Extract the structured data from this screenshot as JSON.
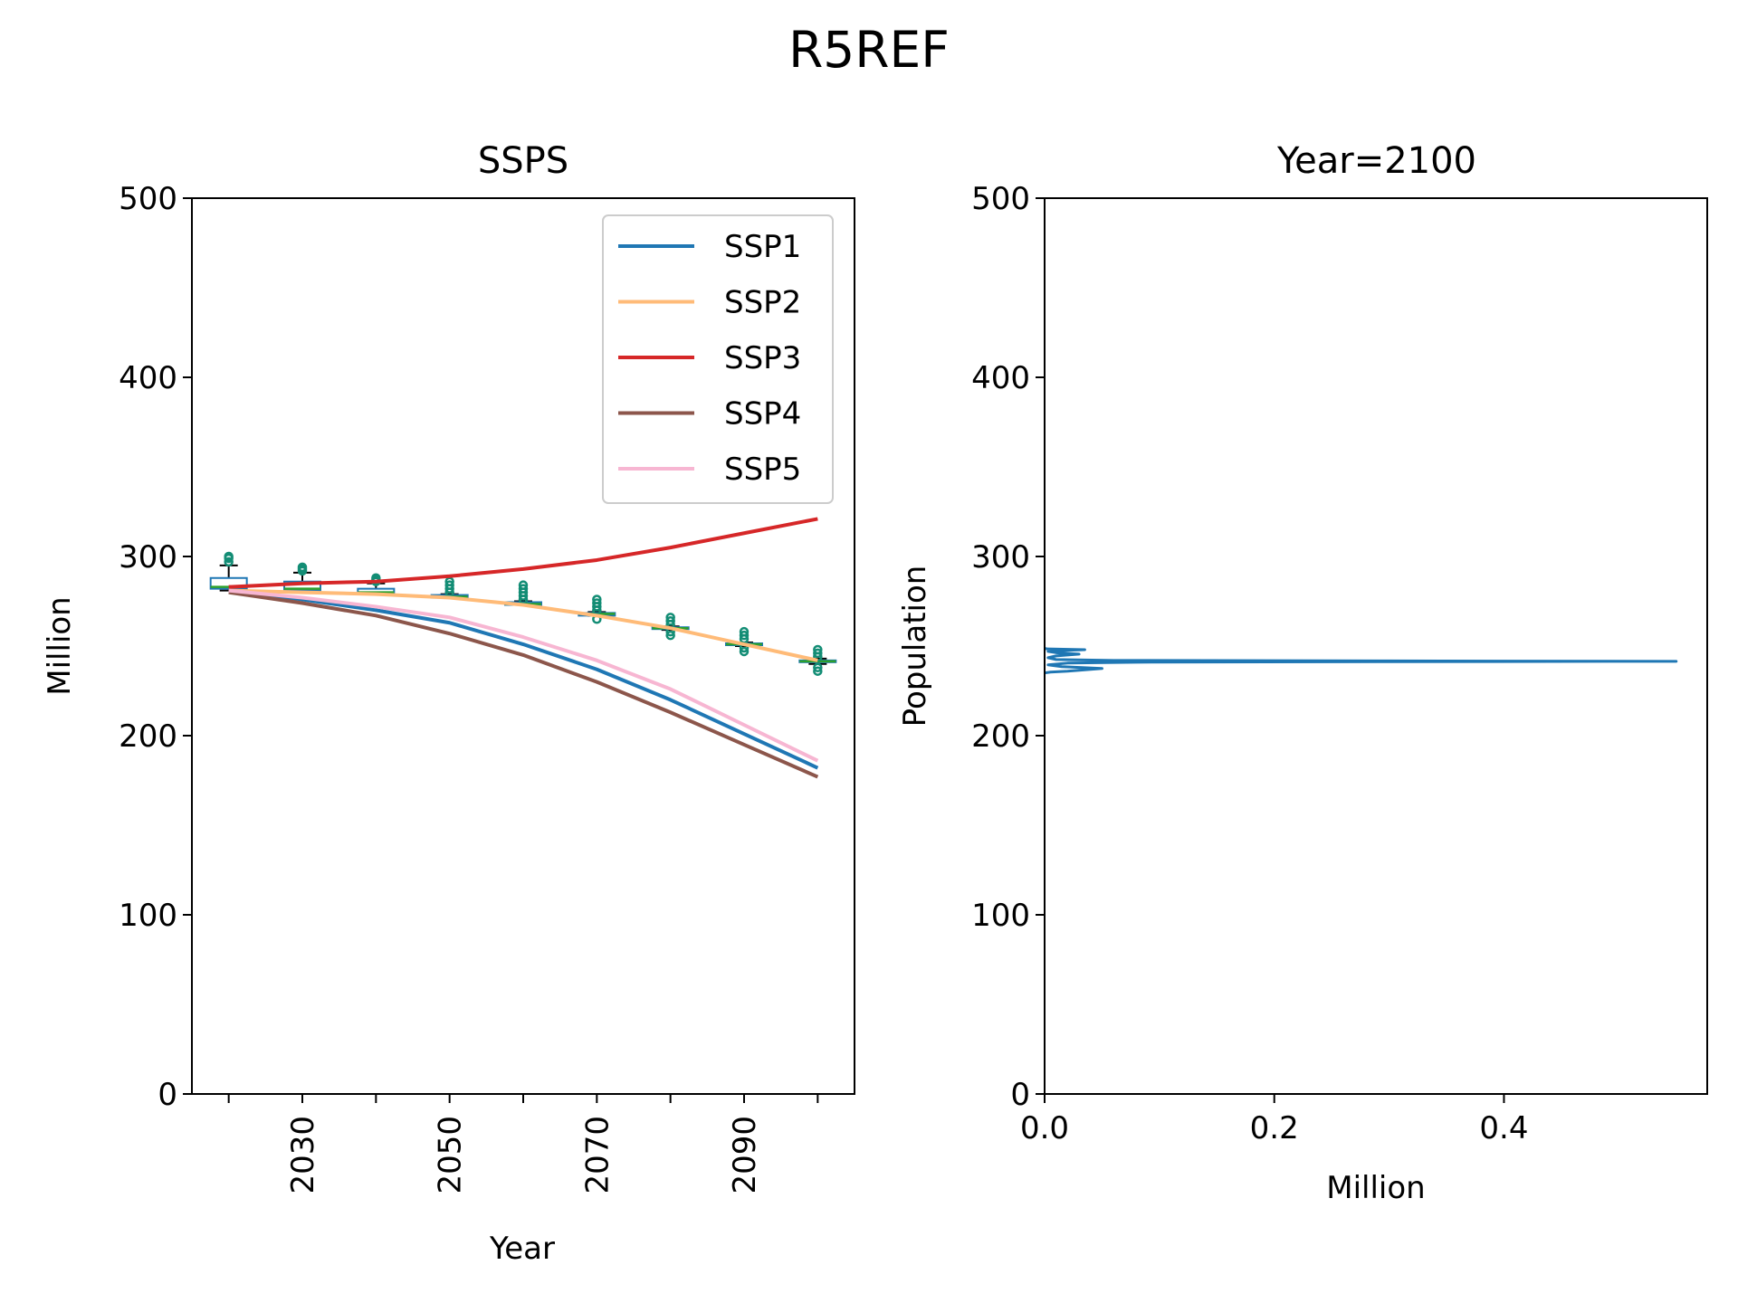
{
  "figure": {
    "suptitle": "R5REF"
  },
  "chart_data": [
    {
      "type": "line",
      "title": "SSPS",
      "xlabel": "Year",
      "ylabel": "Million",
      "ylim": [
        0,
        500
      ],
      "yticks": [
        0,
        100,
        200,
        300,
        400,
        500
      ],
      "xticks_labeled": [
        "2030",
        "2050",
        "2070",
        "2090"
      ],
      "x": [
        2020,
        2030,
        2040,
        2050,
        2060,
        2070,
        2080,
        2090,
        2100
      ],
      "grid": false,
      "legend_position": "upper right",
      "series": [
        {
          "name": "SSP1",
          "color": "#1f77b4",
          "values": [
            281,
            276,
            270,
            263,
            251,
            237,
            220,
            201,
            182
          ]
        },
        {
          "name": "SSP2",
          "color": "#ffbb78",
          "values": [
            281,
            280,
            279,
            277,
            273,
            267,
            260,
            251,
            242
          ]
        },
        {
          "name": "SSP3",
          "color": "#d62728",
          "values": [
            283,
            285,
            286,
            289,
            293,
            298,
            305,
            313,
            321
          ]
        },
        {
          "name": "SSP4",
          "color": "#8c564b",
          "values": [
            280,
            274,
            267,
            257,
            245,
            230,
            213,
            195,
            177
          ]
        },
        {
          "name": "SSP5",
          "color": "#f7b6d2",
          "values": [
            281,
            277,
            272,
            266,
            255,
            242,
            226,
            206,
            186
          ]
        }
      ],
      "boxplots": {
        "box_color": "#1f77b4",
        "median_color": "#2ca02c",
        "flier_color": "#138d75",
        "boxes": [
          {
            "x": 2020,
            "q1": 282,
            "median": 283,
            "q3": 288,
            "whisker_low": 281,
            "whisker_high": 295,
            "fliers": [
              297,
              299,
              300
            ]
          },
          {
            "x": 2030,
            "q1": 281,
            "median": 282,
            "q3": 286,
            "whisker_low": 280,
            "whisker_high": 291,
            "fliers": [
              292,
              293,
              294
            ]
          },
          {
            "x": 2040,
            "q1": 279,
            "median": 280,
            "q3": 282,
            "whisker_low": 279,
            "whisker_high": 285,
            "fliers": [
              286,
              287,
              288
            ]
          },
          {
            "x": 2050,
            "q1": 277,
            "median": 277.5,
            "q3": 278.5,
            "whisker_low": 277,
            "whisker_high": 279,
            "fliers": [
              280,
              282,
              284,
              286
            ]
          },
          {
            "x": 2060,
            "q1": 273,
            "median": 273.5,
            "q3": 274.5,
            "whisker_low": 273,
            "whisker_high": 275,
            "fliers": [
              276,
              278,
              280,
              282,
              284
            ]
          },
          {
            "x": 2070,
            "q1": 267,
            "median": 268,
            "q3": 268.5,
            "whisker_low": 267,
            "whisker_high": 269,
            "fliers": [
              265,
              270,
              272,
              274,
              276
            ]
          },
          {
            "x": 2080,
            "q1": 259.5,
            "median": 260,
            "q3": 260.5,
            "whisker_low": 259,
            "whisker_high": 261,
            "fliers": [
              256,
              258,
              262,
              264,
              266
            ]
          },
          {
            "x": 2090,
            "q1": 250.5,
            "median": 251,
            "q3": 251.5,
            "whisker_low": 250,
            "whisker_high": 252,
            "fliers": [
              247,
              249,
              254,
              256,
              258
            ]
          },
          {
            "x": 2100,
            "q1": 241,
            "median": 241.5,
            "q3": 242,
            "whisker_low": 240,
            "whisker_high": 243,
            "fliers": [
              236,
              238,
              244,
              246,
              248
            ]
          }
        ]
      }
    },
    {
      "type": "line",
      "title": "Year=2100",
      "xlabel": "Million",
      "ylabel": "Population",
      "ylim": [
        0,
        500
      ],
      "xlim": [
        0,
        0.577
      ],
      "xticks": [
        "0.0",
        "0.2",
        "0.4"
      ],
      "yticks": [
        0,
        100,
        200,
        300,
        400,
        500
      ],
      "grid": false,
      "series": [
        {
          "color": "#1f77b4",
          "points": [
            [
              0,
              235
            ],
            [
              0.005,
              235.5
            ],
            [
              0.02,
              236
            ],
            [
              0.05,
              237.5
            ],
            [
              0.015,
              238.5
            ],
            [
              0.003,
              239.5
            ],
            [
              0.02,
              240.5
            ],
            [
              0.08,
              241
            ],
            [
              0.3,
              241.3
            ],
            [
              0.55,
              241.5
            ],
            [
              0.3,
              241.7
            ],
            [
              0.06,
              242
            ],
            [
              0.01,
              242.5
            ],
            [
              0.003,
              243.5
            ],
            [
              0.01,
              244.5
            ],
            [
              0.03,
              245.5
            ],
            [
              0.01,
              246.3
            ],
            [
              0.003,
              247
            ],
            [
              0.02,
              247.6
            ],
            [
              0.035,
              248
            ],
            [
              0.002,
              248.4
            ],
            [
              0,
              248.8
            ]
          ]
        }
      ]
    }
  ]
}
